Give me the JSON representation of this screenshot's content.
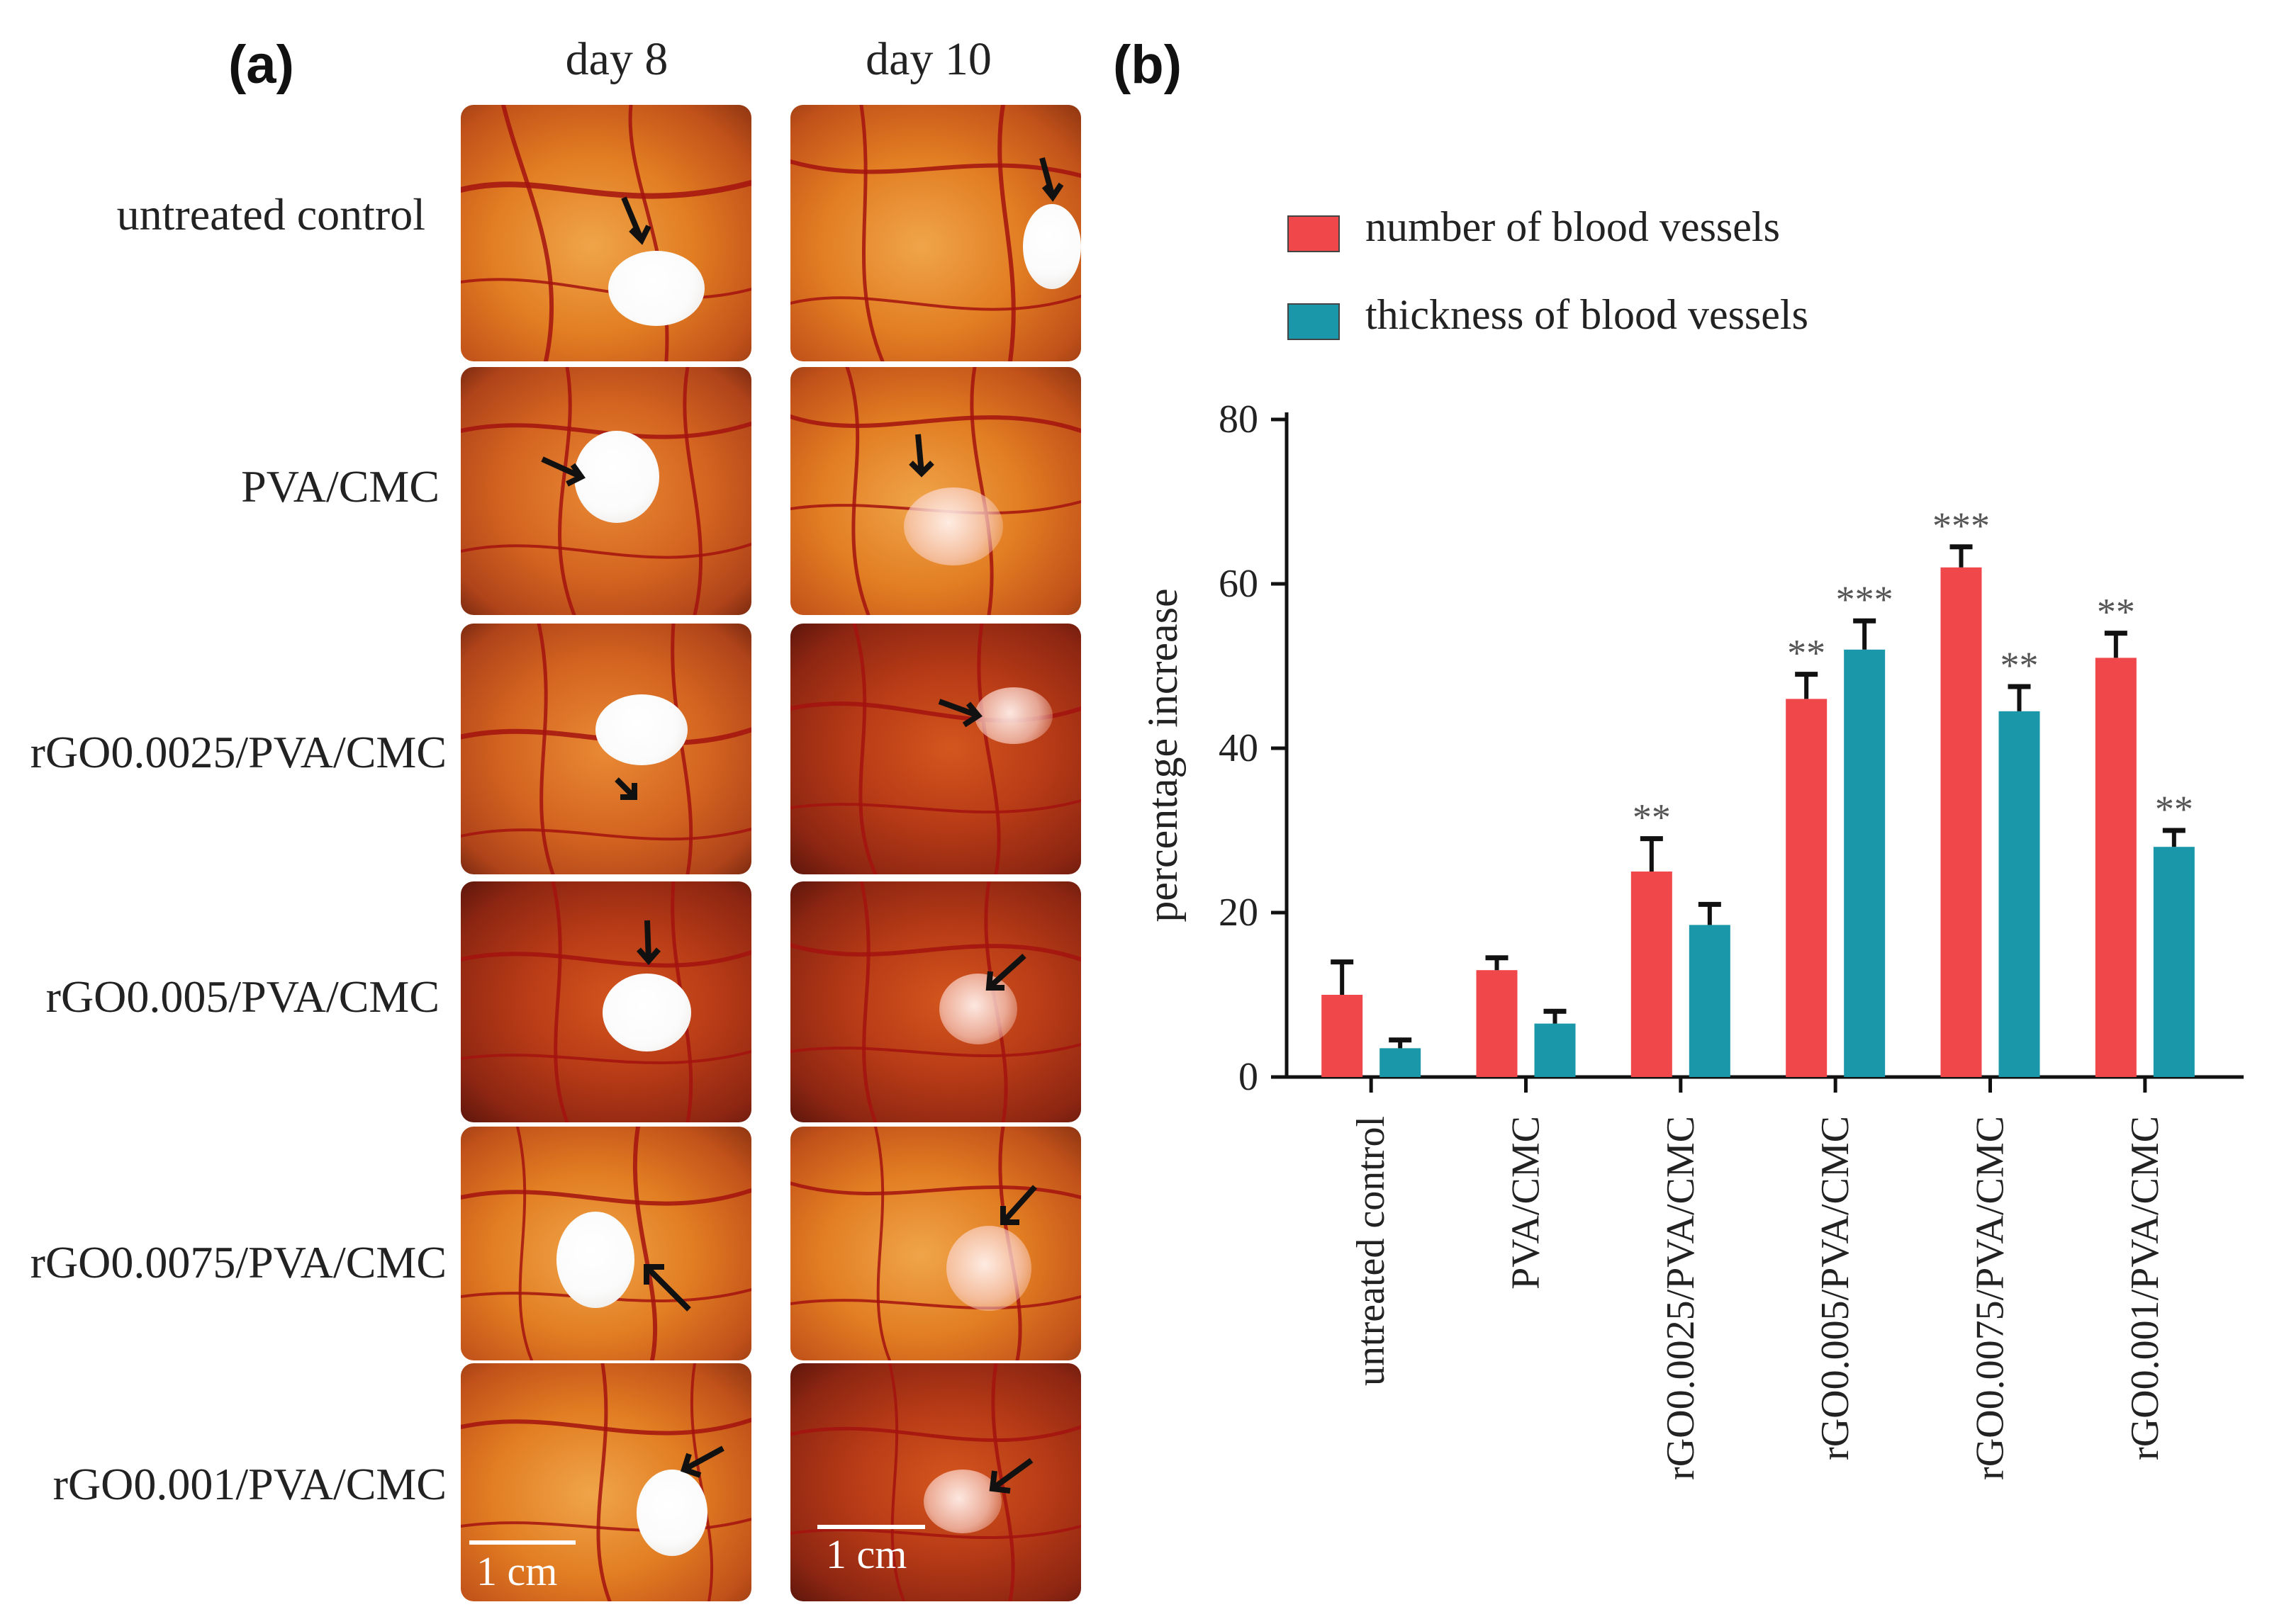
{
  "panel_a": {
    "letter": "(a)",
    "columns": [
      "day 8",
      "day 10"
    ],
    "rows": [
      "untreated control",
      "PVA/CMC",
      "rGO0.0025/PVA/CMC",
      "rGO0.005/PVA/CMC",
      "rGO0.0075/PVA/CMC",
      "rGO0.001/PVA/CMC"
    ],
    "scale_label": "1 cm"
  },
  "panel_b": {
    "letter": "(b)"
  },
  "colors": {
    "number": "#f0474b",
    "thickness": "#1a97a8",
    "error_bar": "#111111"
  },
  "chart_data": {
    "type": "bar",
    "title": "",
    "xlabel": "",
    "ylabel": "percentage increase",
    "ylim": [
      0,
      80
    ],
    "yticks": [
      0,
      20,
      40,
      60,
      80
    ],
    "legend_position": "top",
    "categories": [
      "untreated control",
      "PVA/CMC",
      "rGO0.0025/PVA/CMC",
      "rGO0.005/PVA/CMC",
      "rGO0.0075/PVA/CMC",
      "rGO0.001/PVA/CMC"
    ],
    "series": [
      {
        "name": "number of blood vessels",
        "values": [
          10,
          13,
          25,
          46,
          62,
          51
        ],
        "errors": [
          4,
          1.5,
          4,
          3,
          2.5,
          3
        ],
        "significance": [
          "",
          "",
          "**",
          "**",
          "***",
          "**"
        ]
      },
      {
        "name": "thickness of blood vessels",
        "values": [
          3.5,
          6.5,
          18.5,
          52,
          44.5,
          28
        ],
        "errors": [
          1,
          1.5,
          2.5,
          3.5,
          3,
          2
        ],
        "significance": [
          "",
          "",
          "",
          "***",
          "**",
          "**"
        ]
      }
    ]
  }
}
